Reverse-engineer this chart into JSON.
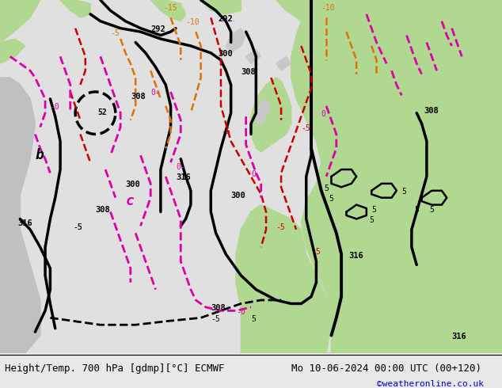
{
  "title_left": "Height/Temp. 700 hPa [gdmp][°C] ECMWF",
  "title_right": "Mo 10-06-2024 00:00 UTC (00+120)",
  "watermark": "©weatheronline.co.uk",
  "watermark_color": "#0000cc",
  "fig_width": 6.34,
  "fig_height": 4.9,
  "dpi": 100,
  "title_fontsize": 9,
  "watermark_fontsize": 8,
  "bg_light_gray": "#e0e0e0",
  "bg_gray": "#c8c8c8",
  "green_color": "#b0d890",
  "green_dark": "#98cc78",
  "land_gray": "#d0d0d0",
  "sea_gray": "#e8e8e8",
  "bottom_bg": "#e8e8e8"
}
